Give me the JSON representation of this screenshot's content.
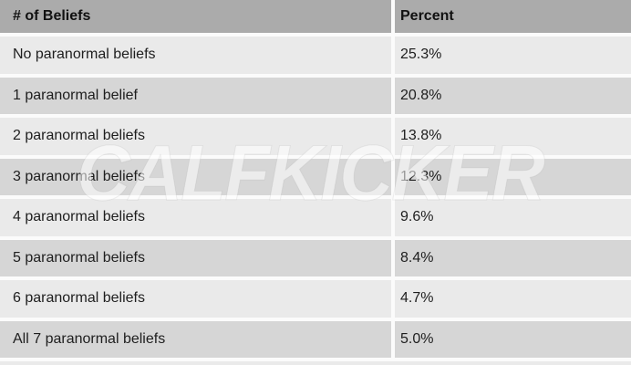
{
  "table": {
    "header": {
      "col1": "# of Beliefs",
      "col2": "Percent"
    },
    "rows": [
      {
        "beliefs": "No paranormal beliefs",
        "percent": "25.3%"
      },
      {
        "beliefs": "1 paranormal belief",
        "percent": "20.8%"
      },
      {
        "beliefs": "2 paranormal beliefs",
        "percent": "13.8%"
      },
      {
        "beliefs": "3 paranormal beliefs",
        "percent": "12.3%"
      },
      {
        "beliefs": "4 paranormal beliefs",
        "percent": "9.6%"
      },
      {
        "beliefs": "5 paranormal beliefs",
        "percent": "8.4%"
      },
      {
        "beliefs": "6 paranormal beliefs",
        "percent": "4.7%"
      },
      {
        "beliefs": "All 7 paranormal beliefs",
        "percent": "5.0%"
      }
    ]
  },
  "watermark": "CALFKICKER",
  "colors": {
    "header_bg": "#ababab",
    "row_light": "#eaeaea",
    "row_dark": "#d6d6d6",
    "gap": "#fbfbfb",
    "text": "#1e1e1e",
    "watermark": "rgba(255,255,255,0.55)"
  },
  "chart_data": {
    "type": "table",
    "title": "Distribution of number of paranormal beliefs",
    "columns": [
      "# of Beliefs",
      "Percent"
    ],
    "categories": [
      "No paranormal beliefs",
      "1 paranormal belief",
      "2 paranormal beliefs",
      "3 paranormal beliefs",
      "4 paranormal beliefs",
      "5 paranormal beliefs",
      "6 paranormal beliefs",
      "All 7 paranormal beliefs"
    ],
    "values": [
      25.3,
      20.8,
      13.8,
      12.3,
      9.6,
      8.4,
      4.7,
      5.0
    ],
    "unit": "%"
  }
}
